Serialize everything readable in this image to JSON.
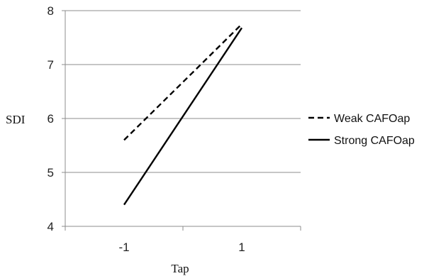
{
  "chart_data": {
    "type": "line",
    "title": "",
    "xlabel": "Tap",
    "ylabel": "SDI",
    "categories": [
      "-1",
      "1"
    ],
    "x": [
      -1,
      1
    ],
    "ylim": [
      4,
      8
    ],
    "yticks": [
      "4",
      "5",
      "6",
      "7",
      "8"
    ],
    "grid": "horizontal",
    "legend_position": "right",
    "series": [
      {
        "name": "Weak CAFOap",
        "values": [
          5.6,
          7.75
        ],
        "style": "dashed",
        "color": "#000000"
      },
      {
        "name": "Strong CAFOap",
        "values": [
          4.4,
          7.68
        ],
        "style": "solid",
        "color": "#000000"
      }
    ]
  }
}
